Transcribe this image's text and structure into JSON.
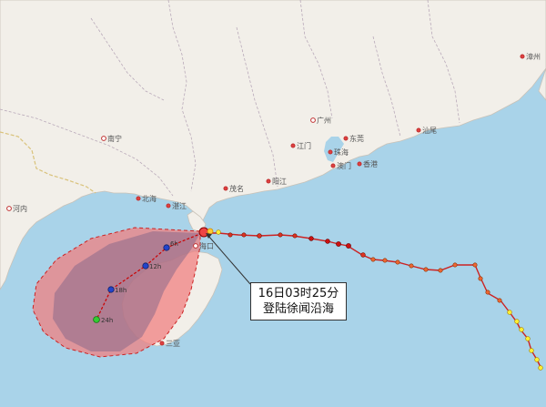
{
  "map": {
    "cities": [
      {
        "name": "漳州",
        "kind": "city"
      },
      {
        "name": "广州",
        "kind": "capital"
      },
      {
        "name": "东莞",
        "kind": "city"
      },
      {
        "name": "汕尾",
        "kind": "city"
      },
      {
        "name": "南宁",
        "kind": "capital"
      },
      {
        "name": "江门",
        "kind": "city"
      },
      {
        "name": "珠海",
        "kind": "city"
      },
      {
        "name": "香港",
        "kind": "city"
      },
      {
        "name": "澳门",
        "kind": "city"
      },
      {
        "name": "阳江",
        "kind": "city"
      },
      {
        "name": "茂名",
        "kind": "city"
      },
      {
        "name": "北海",
        "kind": "city"
      },
      {
        "name": "湛江",
        "kind": "city"
      },
      {
        "name": "河内",
        "kind": "capital"
      },
      {
        "name": "海口",
        "kind": "capital"
      },
      {
        "name": "三亚",
        "kind": "city"
      }
    ],
    "forecast_labels": [
      "6h",
      "12h",
      "18h",
      "24h"
    ],
    "callout": {
      "line1": "16日03时25分",
      "line2": "登陆徐闻沿海"
    },
    "colors": {
      "sea": "#a9d3e9",
      "land": "#f2efe9",
      "wind_circle_fill": "#f08080",
      "cone_fill": "#8a6a8a",
      "track_line": "#cc2222",
      "forecast_line": "#cc0000"
    }
  }
}
